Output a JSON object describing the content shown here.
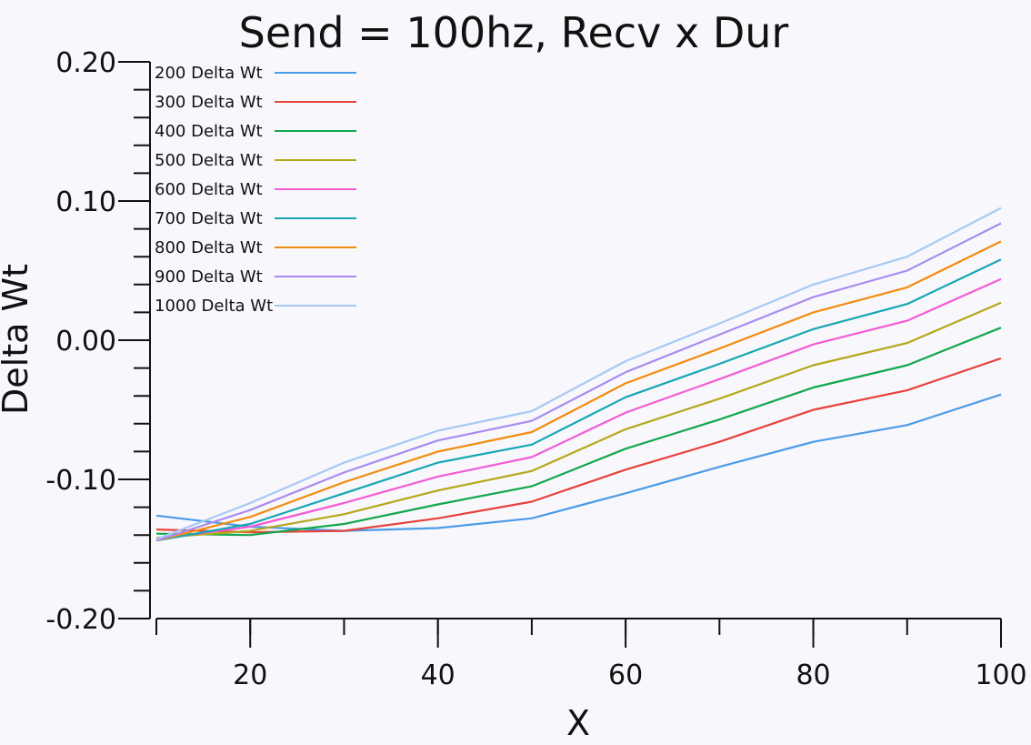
{
  "chart_data": {
    "type": "line",
    "title": "Send = 100hz, Recv x Dur",
    "xlabel": "X",
    "ylabel": "Delta Wt",
    "xlim": [
      10,
      100
    ],
    "ylim": [
      -0.2,
      0.2
    ],
    "x_ticks": [
      20,
      40,
      60,
      80,
      100
    ],
    "y_ticks": [
      -0.2,
      -0.1,
      0.0,
      0.1,
      0.2
    ],
    "y_tick_labels": [
      "-0.20",
      "-0.10",
      "0.00",
      "0.10",
      "0.20"
    ],
    "grid": false,
    "legend_position": "top-left",
    "x": [
      10,
      20,
      30,
      40,
      50,
      60,
      70,
      80,
      90,
      100
    ],
    "series": [
      {
        "name": "200 Delta Wt",
        "color": "#4c9be8",
        "values": [
          -0.126,
          -0.134,
          -0.137,
          -0.135,
          -0.128,
          -0.11,
          -0.091,
          -0.073,
          -0.061,
          -0.039
        ]
      },
      {
        "name": "300 Delta Wt",
        "color": "#e8423c",
        "values": [
          -0.136,
          -0.138,
          -0.137,
          -0.128,
          -0.116,
          -0.093,
          -0.073,
          -0.05,
          -0.036,
          -0.013
        ]
      },
      {
        "name": "400 Delta Wt",
        "color": "#12a84e",
        "values": [
          -0.139,
          -0.14,
          -0.132,
          -0.118,
          -0.105,
          -0.078,
          -0.057,
          -0.034,
          -0.018,
          0.009
        ]
      },
      {
        "name": "500 Delta Wt",
        "color": "#b5a81a",
        "values": [
          -0.142,
          -0.137,
          -0.125,
          -0.108,
          -0.094,
          -0.064,
          -0.042,
          -0.018,
          -0.002,
          0.027
        ]
      },
      {
        "name": "600 Delta Wt",
        "color": "#f25cd4",
        "values": [
          -0.143,
          -0.134,
          -0.117,
          -0.098,
          -0.084,
          -0.052,
          -0.028,
          -0.003,
          0.014,
          0.044
        ]
      },
      {
        "name": "700 Delta Wt",
        "color": "#17a6b5",
        "values": [
          -0.144,
          -0.132,
          -0.11,
          -0.088,
          -0.075,
          -0.041,
          -0.017,
          0.008,
          0.026,
          0.058
        ]
      },
      {
        "name": "800 Delta Wt",
        "color": "#f28c0f",
        "values": [
          -0.144,
          -0.127,
          -0.102,
          -0.08,
          -0.066,
          -0.031,
          -0.006,
          0.02,
          0.038,
          0.071
        ]
      },
      {
        "name": "900 Delta Wt",
        "color": "#a98bf0",
        "values": [
          -0.144,
          -0.122,
          -0.095,
          -0.072,
          -0.058,
          -0.023,
          0.004,
          0.031,
          0.05,
          0.084
        ]
      },
      {
        "name": "1000 Delta Wt",
        "color": "#a7c9f5",
        "values": [
          -0.143,
          -0.117,
          -0.088,
          -0.065,
          -0.051,
          -0.015,
          0.012,
          0.04,
          0.06,
          0.095
        ]
      }
    ]
  }
}
